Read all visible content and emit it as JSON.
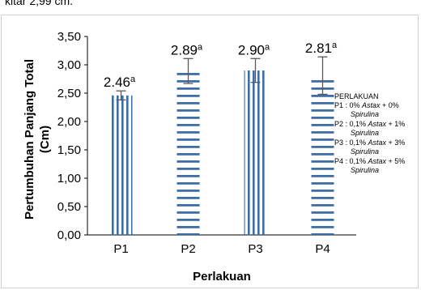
{
  "page": {
    "top_text": "kitar 2,99 cm."
  },
  "chart_data": {
    "type": "bar",
    "title": "",
    "xlabel": "Perlakuan",
    "ylabel_lines": [
      "Pertumbuhan Panjang Total",
      "(Cm)"
    ],
    "ylim": [
      0,
      3.5
    ],
    "yticks": [
      0,
      0.5,
      1.0,
      1.5,
      2.0,
      2.5,
      3.0,
      3.5
    ],
    "ytick_labels": [
      "0,00",
      "0,50",
      "1,00",
      "1,50",
      "2,00",
      "2,50",
      "3,00",
      "3,50"
    ],
    "categories": [
      "P1",
      "P2",
      "P3",
      "P4"
    ],
    "values": [
      2.46,
      2.89,
      2.9,
      2.81
    ],
    "error": [
      0.08,
      0.22,
      0.21,
      0.33
    ],
    "value_labels": [
      "2.46",
      "2.89",
      "2.90",
      "2.81"
    ],
    "superscripts": [
      "a",
      "a",
      "a",
      "a"
    ],
    "patterns": [
      "vertical",
      "horizontal",
      "vertical",
      "horizontal"
    ],
    "bar_color": "#3d6ea8",
    "grid": false,
    "legend": {
      "placement": "right",
      "title": "PERLAKUAN",
      "entries": [
        {
          "prefix": "P1 : 0% ",
          "astax": "Astax",
          "middle": " + 0%",
          "spirulina": "Spirulina"
        },
        {
          "prefix": "P2 : 0,1% ",
          "astax": "Astax",
          "middle": " + 1%",
          "spirulina": "Spirulina"
        },
        {
          "prefix": "P3 : 0,1% ",
          "astax": "Astax",
          "middle": " + 3%",
          "spirulina": "Spirulina"
        },
        {
          "prefix": "P4 : 0,1% ",
          "astax": "Astax",
          "middle": " + 5%",
          "spirulina": "Spirulina"
        }
      ]
    }
  }
}
